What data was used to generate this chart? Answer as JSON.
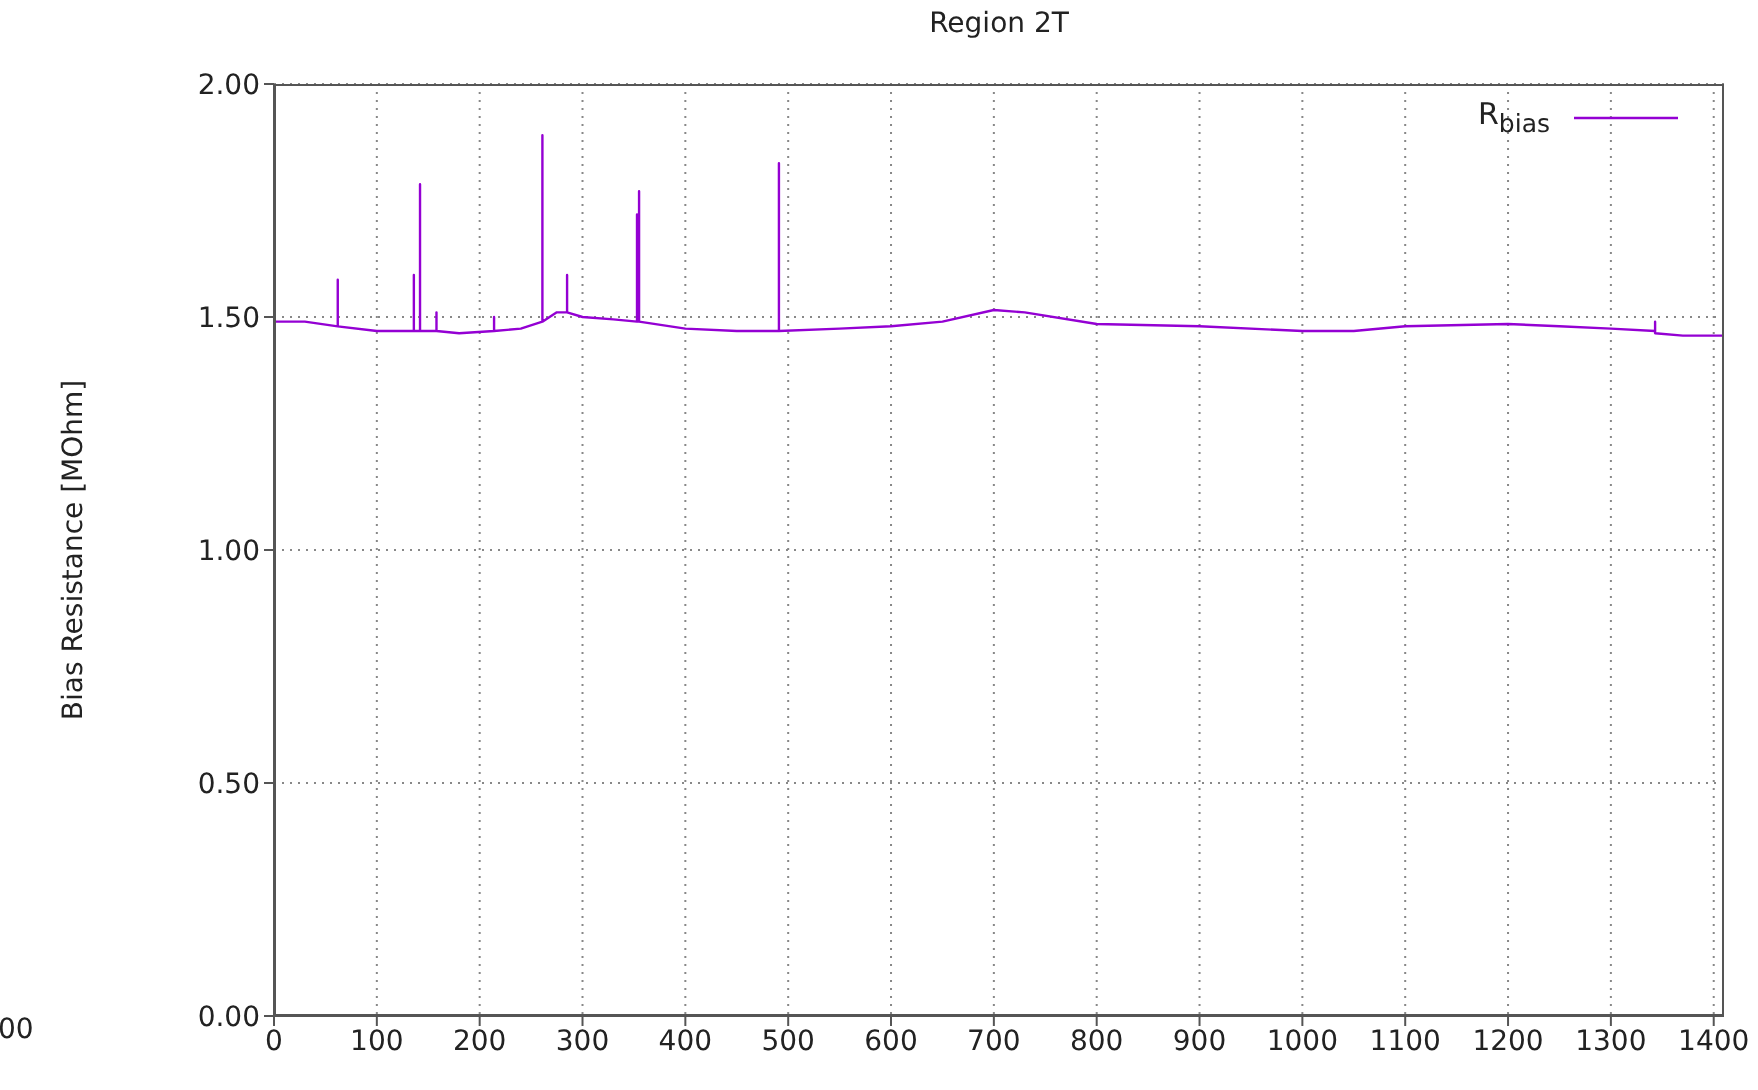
{
  "chart_data": {
    "type": "line",
    "title": "Region 2T",
    "ylabel": "Bias Resistance [MOhm]",
    "annotations": [
      "00"
    ],
    "xlim": [
      0,
      1410
    ],
    "xticks": [
      0,
      100,
      200,
      300,
      400,
      500,
      600,
      700,
      800,
      900,
      1000,
      1100,
      1200,
      1300,
      1400
    ],
    "ylim": [
      0,
      2
    ],
    "yticks": [
      {
        "value": 0,
        "label": "0.00"
      },
      {
        "value": 0.5,
        "label": "0.50"
      },
      {
        "value": 1,
        "label": "1.00"
      },
      {
        "value": 1.5,
        "label": "1.50"
      },
      {
        "value": 2,
        "label": "2.00"
      }
    ],
    "grid": true,
    "legend": "top right",
    "marker": "none",
    "line_style": "solid",
    "series": [
      {
        "name": "R$_{bias}$",
        "color": "#9400d3",
        "x": [
          0,
          30,
          62,
          62,
          62,
          100,
          136,
          136,
          136,
          142,
          142,
          142,
          158,
          158,
          158,
          180,
          214,
          214,
          214,
          240,
          261,
          261,
          261,
          275,
          285,
          285,
          285,
          300,
          330,
          353,
          353,
          353,
          355,
          355,
          355,
          400,
          450,
          491,
          491,
          491,
          550,
          600,
          650,
          700,
          730,
          800,
          900,
          1000,
          1050,
          1100,
          1200,
          1250,
          1300,
          1343,
          1343,
          1343,
          1370,
          1410
        ],
        "values": [
          1.49,
          1.49,
          1.48,
          1.58,
          1.48,
          1.47,
          1.47,
          1.59,
          1.47,
          1.47,
          1.785,
          1.47,
          1.47,
          1.51,
          1.47,
          1.465,
          1.47,
          1.5,
          1.47,
          1.475,
          1.49,
          1.89,
          1.49,
          1.51,
          1.51,
          1.59,
          1.51,
          1.5,
          1.495,
          1.49,
          1.72,
          1.49,
          1.49,
          1.77,
          1.49,
          1.475,
          1.47,
          1.47,
          1.83,
          1.47,
          1.475,
          1.48,
          1.49,
          1.515,
          1.51,
          1.485,
          1.48,
          1.47,
          1.47,
          1.48,
          1.485,
          1.48,
          1.475,
          1.47,
          1.49,
          1.465,
          1.46,
          1.46
        ]
      }
    ]
  }
}
